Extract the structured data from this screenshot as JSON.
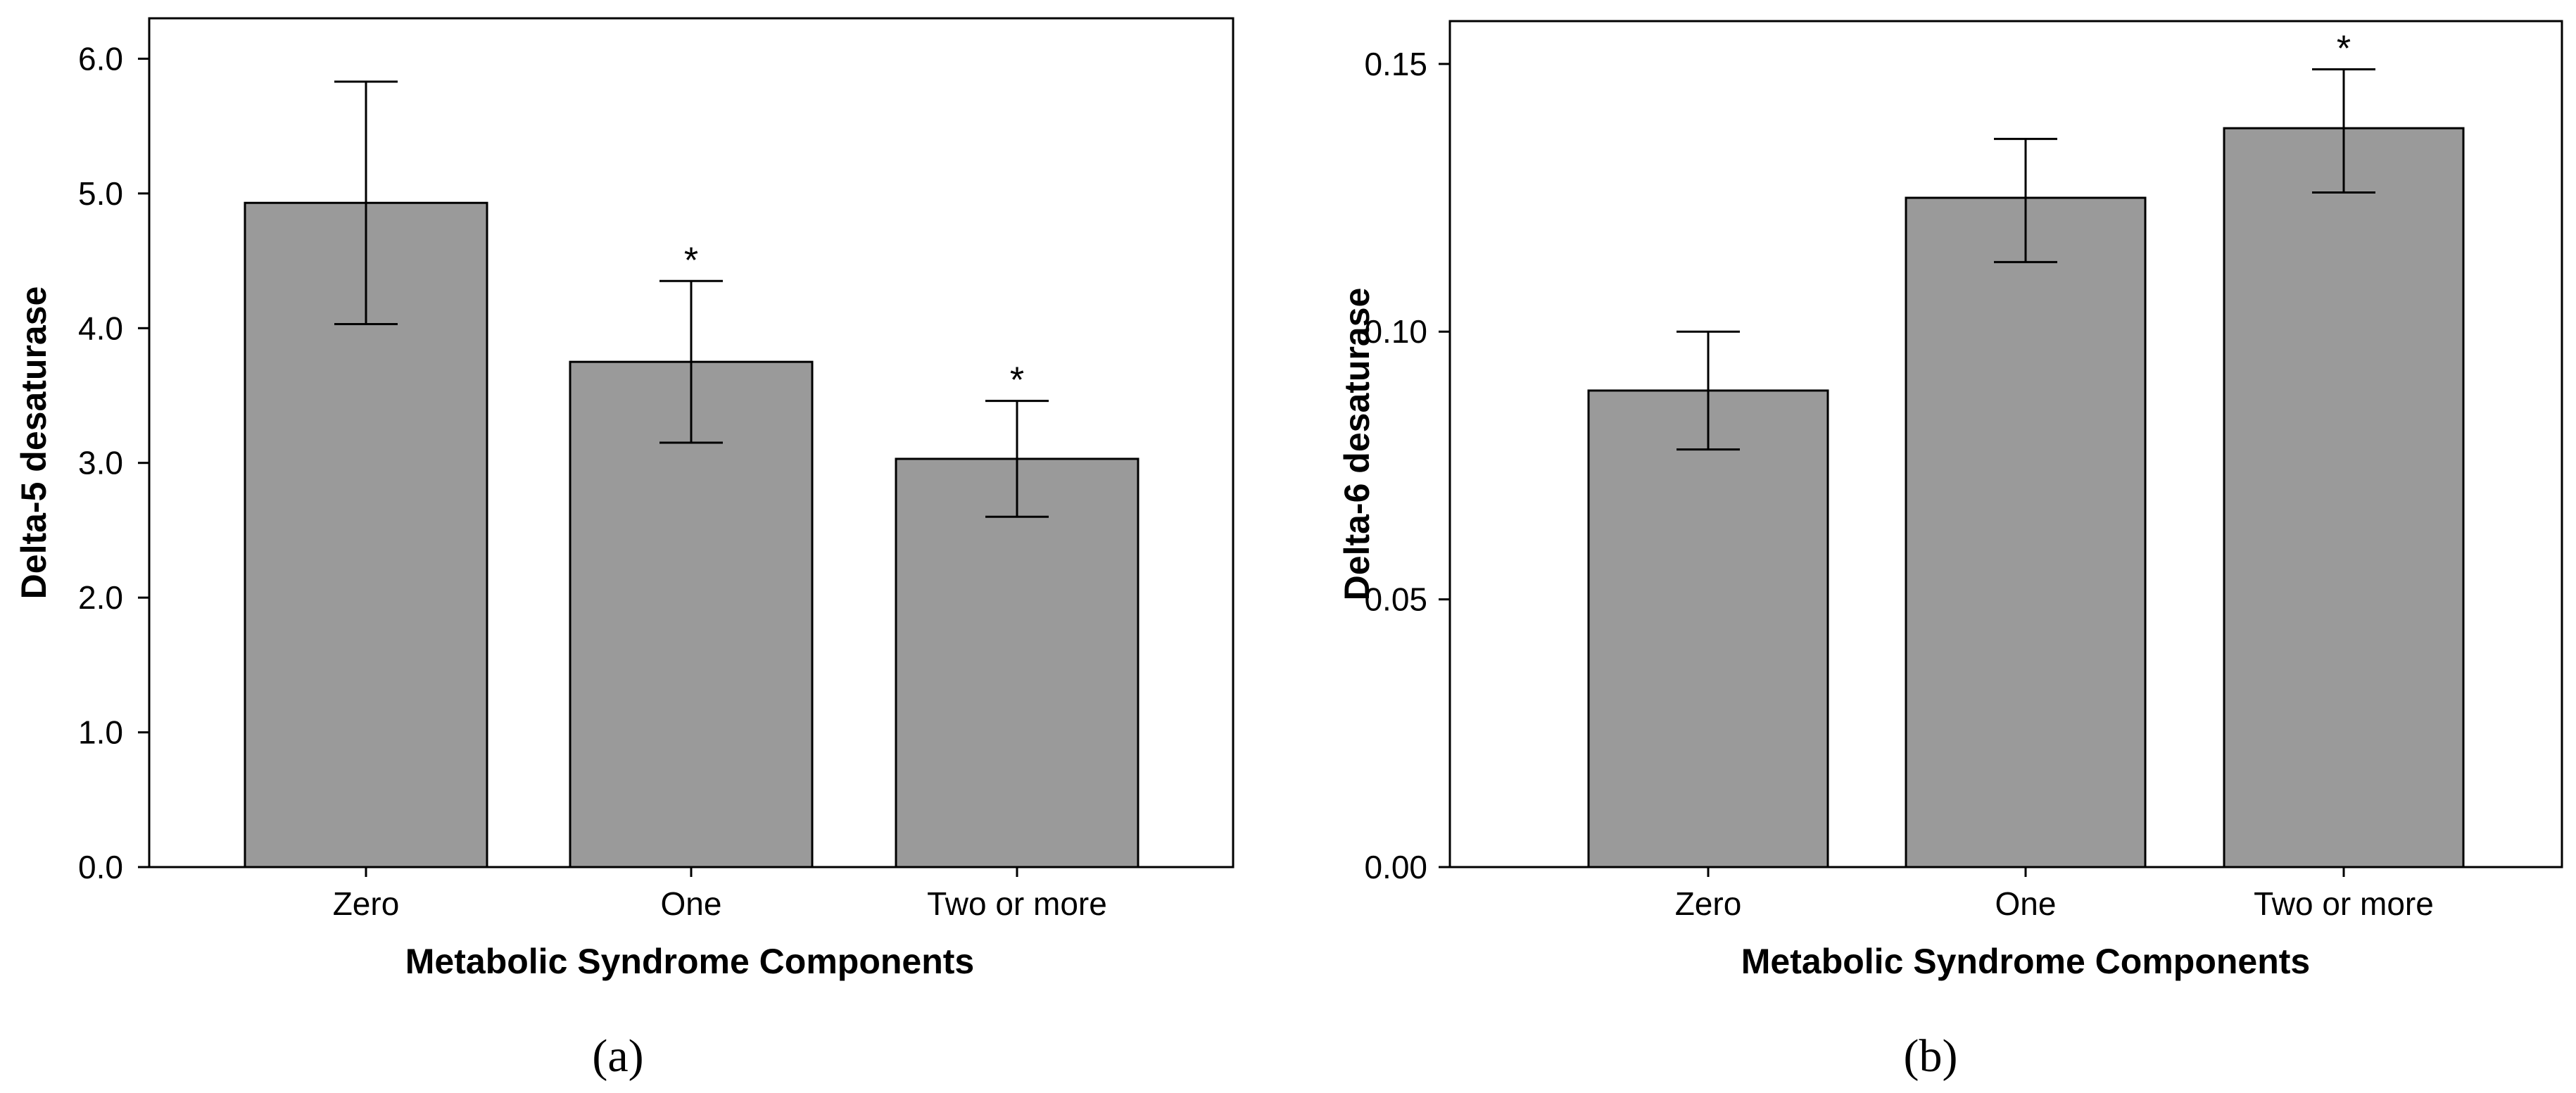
{
  "chart_data": [
    {
      "type": "bar",
      "panel_label": "(a)",
      "categories": [
        "Zero",
        "One",
        "Two or more"
      ],
      "values": [
        4.93,
        3.75,
        3.03
      ],
      "error_upper": [
        5.83,
        4.35,
        3.46
      ],
      "error_lower": [
        4.03,
        3.15,
        2.6
      ],
      "significance": [
        "",
        "*",
        "*"
      ],
      "xlabel": "Metabolic Syndrome Components",
      "ylabel": "Delta-5 desaturase",
      "ylim": [
        0,
        6.3
      ],
      "yticks": [
        0,
        1,
        2,
        3,
        4,
        5,
        6
      ],
      "ytick_labels": [
        "0.0",
        "1.0",
        "2.0",
        "3.0",
        "4.0",
        "5.0",
        "6.0"
      ],
      "grid": false
    },
    {
      "type": "bar",
      "panel_label": "(b)",
      "categories": [
        "Zero",
        "One",
        "Two or more"
      ],
      "values": [
        0.089,
        0.125,
        0.138
      ],
      "error_upper": [
        0.1,
        0.136,
        0.149
      ],
      "error_lower": [
        0.078,
        0.113,
        0.126
      ],
      "significance": [
        "",
        "",
        "*"
      ],
      "xlabel": "Metabolic Syndrome Components",
      "ylabel": "Delta-6 desaturase",
      "ylim": [
        0,
        0.158
      ],
      "yticks": [
        0,
        0.05,
        0.1,
        0.15
      ],
      "ytick_labels": [
        "0.00",
        "0.05",
        "0.10",
        "0.15"
      ],
      "grid": false
    }
  ]
}
